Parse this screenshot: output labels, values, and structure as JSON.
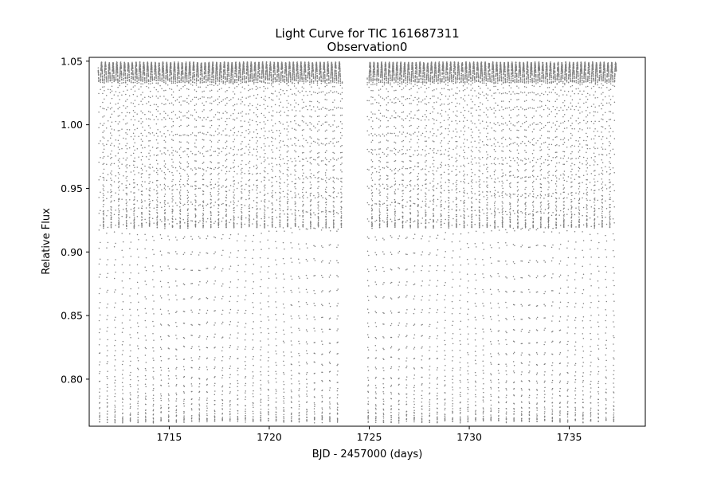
{
  "chart_data": {
    "type": "scatter",
    "title": "Light Curve for TIC 161687311",
    "subtitle": "Observation0",
    "xlabel": "BJD - 2457000 (days)",
    "ylabel": "Relative Flux",
    "xlim": [
      1711.0,
      1738.8
    ],
    "ylim": [
      0.763,
      1.053
    ],
    "xticks": [
      1715,
      1720,
      1725,
      1730,
      1735
    ],
    "yticks": [
      0.8,
      0.85,
      0.9,
      0.95,
      1.0,
      1.05
    ],
    "xtick_labels": [
      "1715",
      "1720",
      "1725",
      "1730",
      "1735"
    ],
    "ytick_labels": [
      "0.80",
      "0.85",
      "0.90",
      "0.95",
      "1.00",
      "1.05"
    ],
    "grid": false,
    "marker_color": "#808080",
    "series": [
      {
        "segments": [
          [
            1711.45,
            1723.65
          ],
          [
            1724.9,
            1737.35
          ]
        ],
        "period_days": 0.3836,
        "first_minimum": 1711.52,
        "max_flux": 1.036,
        "secondary_min_flux": 0.932,
        "primary_min_flux": 0.779,
        "cadence_days": 0.00139
      }
    ]
  }
}
